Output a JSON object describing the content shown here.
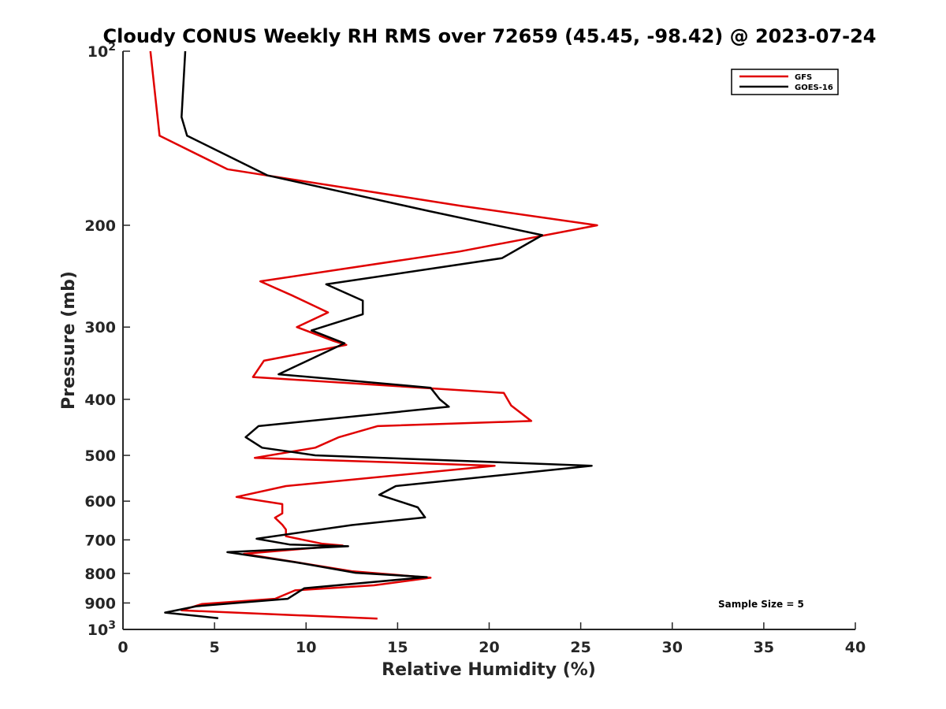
{
  "chart_data": {
    "type": "line",
    "title": "Cloudy CONUS Weekly RH RMS over 72659 (45.45, -98.42) @ 2023-07-24",
    "xlabel": "Relative Humidity (%)",
    "ylabel": "Pressure (mb)",
    "xlim": [
      0,
      40
    ],
    "ylim": [
      100,
      1000
    ],
    "y_scale": "log",
    "y_reversed": true,
    "grid": false,
    "legend_position": "top-right",
    "x_ticks": [
      0,
      5,
      10,
      15,
      20,
      25,
      30,
      35,
      40
    ],
    "x_tick_labels": [
      "0",
      "5",
      "10",
      "15",
      "20",
      "25",
      "30",
      "35",
      "40"
    ],
    "y_ticks": [
      100,
      200,
      300,
      400,
      500,
      600,
      700,
      800,
      900,
      1000
    ],
    "y_tick_labels": [
      {
        "base": "10",
        "exp": "2"
      },
      {
        "base": "200",
        "exp": ""
      },
      {
        "base": "300",
        "exp": ""
      },
      {
        "base": "400",
        "exp": ""
      },
      {
        "base": "500",
        "exp": ""
      },
      {
        "base": "600",
        "exp": ""
      },
      {
        "base": "700",
        "exp": ""
      },
      {
        "base": "800",
        "exp": ""
      },
      {
        "base": "900",
        "exp": ""
      },
      {
        "base": "10",
        "exp": "3"
      }
    ],
    "annotation": "Sample Size = 5",
    "series": [
      {
        "name": "GFS",
        "color": "#e00000",
        "points": [
          [
            1.5,
            100
          ],
          [
            2.0,
            140
          ],
          [
            5.7,
            160
          ],
          [
            18.4,
            185
          ],
          [
            25.9,
            200
          ],
          [
            18.4,
            222
          ],
          [
            7.5,
            250
          ],
          [
            9.3,
            265
          ],
          [
            11.2,
            283
          ],
          [
            9.5,
            300
          ],
          [
            11.5,
            317
          ],
          [
            12.2,
            322
          ],
          [
            7.7,
            343
          ],
          [
            7.1,
            366
          ],
          [
            20.8,
            390
          ],
          [
            21.2,
            410
          ],
          [
            22.3,
            436
          ],
          [
            13.9,
            445
          ],
          [
            11.8,
            465
          ],
          [
            10.5,
            485
          ],
          [
            7.2,
            505
          ],
          [
            20.3,
            521
          ],
          [
            8.9,
            565
          ],
          [
            6.2,
            590
          ],
          [
            8.7,
            607
          ],
          [
            8.7,
            630
          ],
          [
            8.3,
            641
          ],
          [
            8.7,
            659
          ],
          [
            8.9,
            672
          ],
          [
            8.9,
            690
          ],
          [
            10.9,
            711
          ],
          [
            12.0,
            716
          ],
          [
            6.6,
            740
          ],
          [
            10.0,
            770
          ],
          [
            12.5,
            793
          ],
          [
            16.8,
            814
          ],
          [
            13.7,
            839
          ],
          [
            9.4,
            856
          ],
          [
            8.3,
            885
          ],
          [
            4.3,
            904
          ],
          [
            3.2,
            927
          ],
          [
            13.9,
            958
          ]
        ]
      },
      {
        "name": "GOES-16",
        "color": "#000000",
        "points": [
          [
            3.4,
            100
          ],
          [
            3.2,
            130
          ],
          [
            3.5,
            140
          ],
          [
            7.9,
            164
          ],
          [
            16.7,
            189
          ],
          [
            22.9,
            208
          ],
          [
            20.7,
            228
          ],
          [
            11.1,
            253
          ],
          [
            13.1,
            270
          ],
          [
            13.1,
            285
          ],
          [
            10.3,
            304
          ],
          [
            12.1,
            320
          ],
          [
            8.5,
            362
          ],
          [
            16.8,
            382
          ],
          [
            17.3,
            400
          ],
          [
            17.8,
            412
          ],
          [
            7.4,
            445
          ],
          [
            6.7,
            465
          ],
          [
            7.6,
            485
          ],
          [
            10.5,
            500
          ],
          [
            25.6,
            521
          ],
          [
            14.9,
            565
          ],
          [
            14.0,
            585
          ],
          [
            16.1,
            615
          ],
          [
            16.5,
            640
          ],
          [
            12.5,
            660
          ],
          [
            7.3,
            697
          ],
          [
            9.1,
            713
          ],
          [
            12.3,
            718
          ],
          [
            5.7,
            735
          ],
          [
            9.4,
            765
          ],
          [
            12.7,
            798
          ],
          [
            16.6,
            812
          ],
          [
            9.9,
            849
          ],
          [
            9.0,
            885
          ],
          [
            4.0,
            912
          ],
          [
            2.3,
            935
          ],
          [
            5.2,
            956
          ]
        ]
      }
    ]
  }
}
